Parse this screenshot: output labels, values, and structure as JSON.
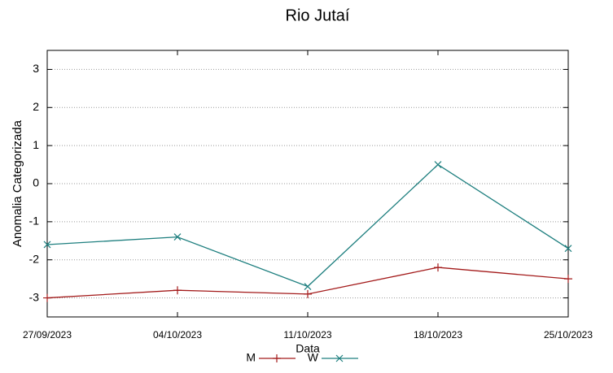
{
  "chart_data": {
    "type": "line",
    "title": "Rio Jutaí",
    "x_label": "Data",
    "y_label": "Anomalia Categorizada",
    "categories": [
      "27/09/2023",
      "04/10/2023",
      "11/10/2023",
      "18/10/2023",
      "25/10/2023"
    ],
    "series": [
      {
        "name": "M",
        "color": "#a31a1a",
        "marker": "+",
        "values": [
          -3.0,
          -2.8,
          -2.9,
          -2.2,
          -2.5
        ]
      },
      {
        "name": "W",
        "color": "#1e7f7f",
        "marker": "x",
        "values": [
          -1.6,
          -1.4,
          -2.7,
          0.5,
          -1.7
        ]
      }
    ],
    "ylim": [
      -3.5,
      3.5
    ],
    "yticks": [
      -3,
      -2,
      -1,
      0,
      1,
      2,
      3
    ],
    "grid": true,
    "legend": "bottom"
  }
}
